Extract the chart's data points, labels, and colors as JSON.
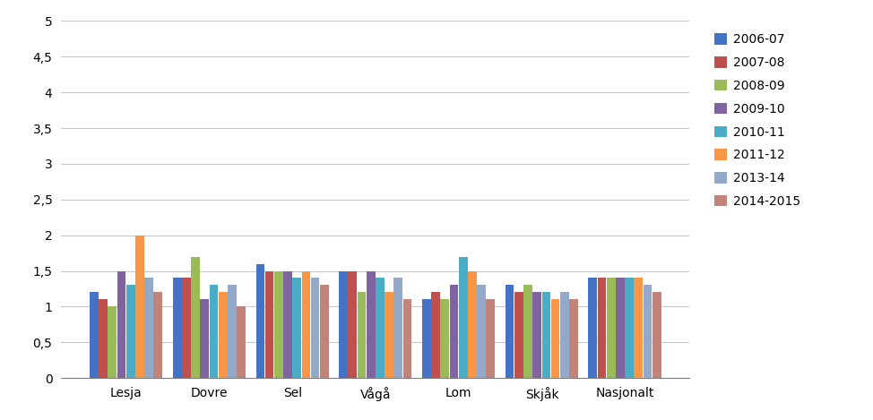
{
  "categories": [
    "Lesja",
    "Dovre",
    "Sel",
    "Vågå",
    "Lom",
    "Skjåk",
    "Nasjonalt"
  ],
  "series_labels": [
    "2006-07",
    "2007-08",
    "2008-09",
    "2009-10",
    "2010-11",
    "2011-12",
    "2013-14",
    "2014-2015"
  ],
  "colors": [
    "#4472C4",
    "#C0504D",
    "#9BBB59",
    "#8064A2",
    "#4BACC6",
    "#F79646",
    "#93A9CA",
    "#C0847A"
  ],
  "values": {
    "Lesja": [
      1.2,
      1.1,
      1.0,
      1.5,
      1.3,
      2.0,
      1.4,
      1.2
    ],
    "Dovre": [
      1.4,
      1.4,
      1.7,
      1.1,
      1.3,
      1.2,
      1.3,
      1.0
    ],
    "Sel": [
      1.6,
      1.5,
      1.5,
      1.5,
      1.4,
      1.5,
      1.4,
      1.3
    ],
    "Vågå": [
      1.5,
      1.5,
      1.2,
      1.5,
      1.4,
      1.2,
      1.4,
      1.1
    ],
    "Lom": [
      1.1,
      1.2,
      1.1,
      1.3,
      1.7,
      1.5,
      1.3,
      1.1
    ],
    "Skjåk": [
      1.3,
      1.2,
      1.3,
      1.2,
      1.2,
      1.1,
      1.2,
      1.1
    ],
    "Nasjonalt": [
      1.4,
      1.4,
      1.4,
      1.4,
      1.4,
      1.4,
      1.3,
      1.2
    ]
  },
  "ylim": [
    0,
    5
  ],
  "yticks": [
    0,
    0.5,
    1.0,
    1.5,
    2.0,
    2.5,
    3.0,
    3.5,
    4.0,
    4.5,
    5.0
  ],
  "ytick_labels": [
    "0",
    "0,5",
    "1",
    "1,5",
    "2",
    "2,5",
    "3",
    "3,5",
    "4",
    "4,5",
    "5"
  ],
  "background_color": "#FFFFFF",
  "grid_color": "#C8C8C8"
}
